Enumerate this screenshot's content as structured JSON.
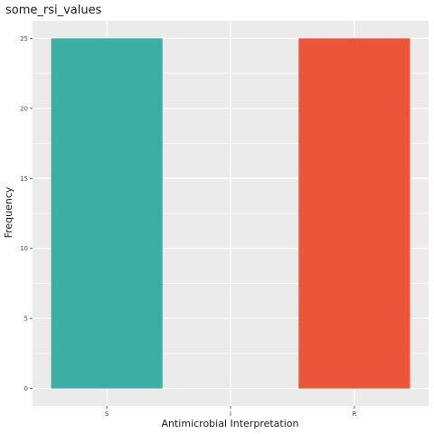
{
  "chart_data": {
    "type": "bar",
    "title": "some_rsi_values",
    "xlabel": "Antimicrobial Interpretation",
    "ylabel": "Frequency",
    "categories": [
      "S",
      "I",
      "R"
    ],
    "values": [
      25,
      0,
      25
    ],
    "colors": [
      "#3CAEA3",
      "#F6D55C",
      "#ED553B"
    ],
    "ylim": [
      -1.25,
      26.25
    ],
    "yticks": [
      0,
      5,
      10,
      15,
      20,
      25
    ],
    "ytick_labels": [
      "0",
      "5",
      "10",
      "15",
      "20",
      "25"
    ],
    "grid": true,
    "panel_background": "#EBEBEB",
    "grid_color": "#FFFFFF"
  }
}
